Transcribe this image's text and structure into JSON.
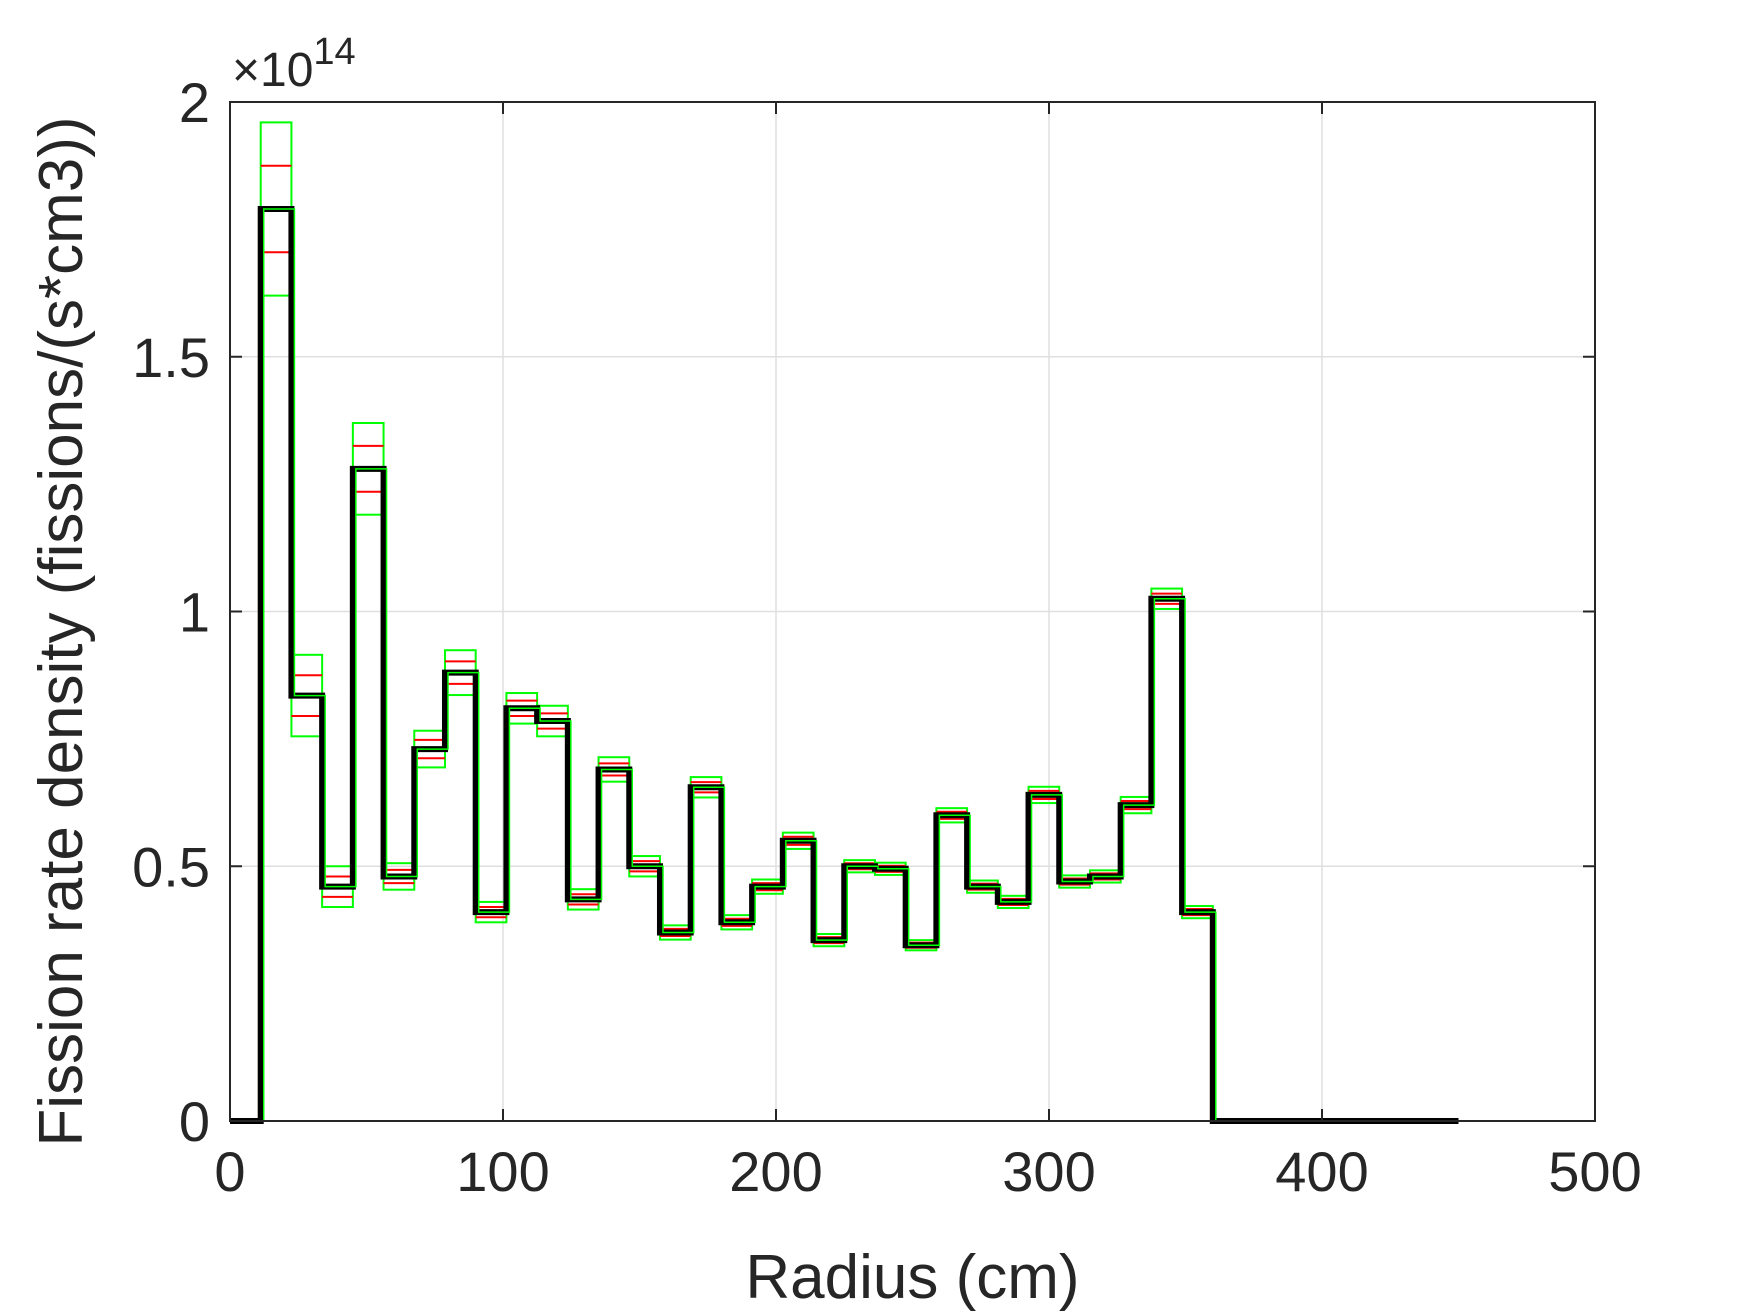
{
  "chart_data": {
    "type": "line",
    "title": "",
    "xlabel": "Radius (cm)",
    "ylabel": "Fission rate density (fissions/(s*cm3))",
    "y_exponent_label": "×10",
    "y_exponent_power": "14",
    "xlim": [
      0,
      500
    ],
    "ylim": [
      0,
      2
    ],
    "xticks": [
      0,
      100,
      200,
      300,
      400,
      500
    ],
    "xtick_labels": [
      "0",
      "100",
      "200",
      "300",
      "400",
      "500"
    ],
    "yticks": [
      0,
      0.5,
      1,
      1.5,
      2
    ],
    "ytick_labels": [
      "0",
      "0.5",
      "1",
      "1.5",
      "2"
    ],
    "grid": true,
    "legend": "none",
    "colors": {
      "mean": "#000000",
      "sigma1": "#ff0000",
      "sigma2": "#00ff00",
      "grid": "#dfdfdf",
      "axis": "#262626"
    },
    "bin_edges": [
      0,
      11.25,
      22.5,
      33.75,
      45,
      56.25,
      67.5,
      78.75,
      90,
      101.25,
      112.5,
      123.75,
      135,
      146.25,
      157.5,
      168.75,
      180,
      191.25,
      202.5,
      213.75,
      225,
      236.25,
      247.5,
      258.75,
      270,
      281.25,
      292.5,
      303.75,
      315,
      326.25,
      337.5,
      348.75,
      360,
      371.25,
      382.5,
      393.75,
      405,
      416.25,
      427.5,
      438.75,
      450
    ],
    "series": [
      {
        "values": [
          0,
          1.79,
          0.835,
          0.46,
          1.28,
          0.48,
          0.73,
          0.88,
          0.41,
          0.81,
          0.785,
          0.435,
          0.69,
          0.5,
          0.37,
          0.655,
          0.39,
          0.46,
          0.55,
          0.355,
          0.5,
          0.495,
          0.345,
          0.6,
          0.46,
          0.43,
          0.64,
          0.47,
          0.48,
          0.62,
          1.025,
          0.41,
          0,
          0,
          0,
          0,
          0,
          0,
          0,
          0
        ],
        "unc_1sigma": [
          0,
          0.085,
          0.04,
          0.02,
          0.045,
          0.013,
          0.018,
          0.022,
          0.01,
          0.015,
          0.015,
          0.01,
          0.012,
          0.01,
          0.007,
          0.01,
          0.007,
          0.007,
          0.008,
          0.006,
          0.006,
          0.006,
          0.005,
          0.007,
          0.006,
          0.006,
          0.008,
          0.006,
          0.006,
          0.008,
          0.01,
          0.006,
          0,
          0,
          0,
          0,
          0,
          0,
          0,
          0
        ]
      }
    ]
  }
}
